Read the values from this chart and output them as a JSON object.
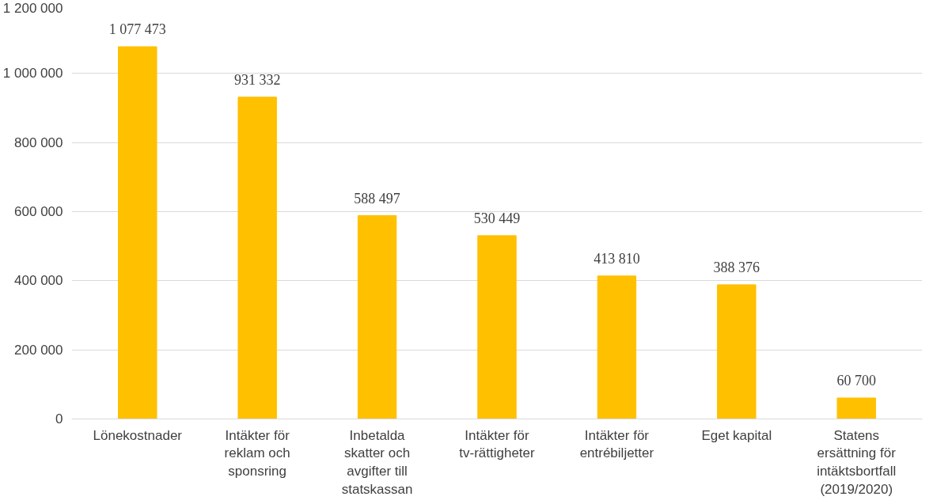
{
  "chart_data": {
    "type": "bar",
    "categories": [
      "Lönekostnader",
      "Intäkter för reklam och sponsring",
      "Inbetalda skatter och avgifter till statskassan",
      "Intäkter för tv-rättigheter",
      "Intäkter för entrébiljetter",
      "Eget kapital",
      "Statens ersättning för intäktsbortfall (2019/2020)"
    ],
    "values": [
      1077473,
      931332,
      588497,
      530449,
      413810,
      388376,
      60700
    ],
    "value_labels": [
      "1 077 473",
      "931 332",
      "588 497",
      "530 449",
      "413 810",
      "388 376",
      "60 700"
    ],
    "color": "#ffc000",
    "ylim": [
      0,
      1200000
    ],
    "yticks": [
      {
        "value": 0,
        "label": "0"
      },
      {
        "value": 200000,
        "label": "200 000"
      },
      {
        "value": 400000,
        "label": "400 000"
      },
      {
        "value": 600000,
        "label": "600 000"
      },
      {
        "value": 800000,
        "label": "800 000"
      },
      {
        "value": 1000000,
        "label": "1 000 000"
      },
      {
        "value": 1200000,
        "label": "1 200 000"
      }
    ],
    "grid": "y"
  }
}
